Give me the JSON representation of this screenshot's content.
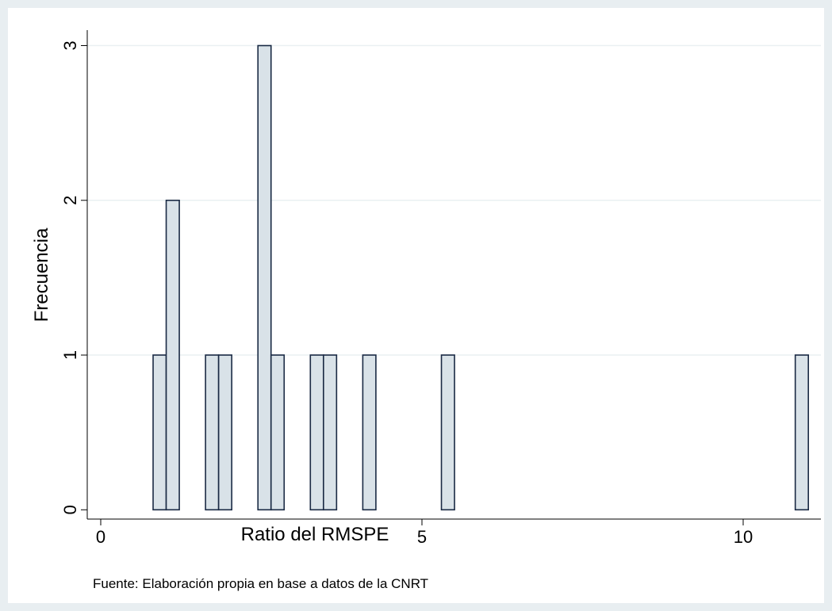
{
  "chart_data": {
    "type": "histogram",
    "x_label": "Ratio del RMSPE",
    "y_label": "Frecuencia",
    "note": "Fuente: Elaboración propia en base a datos de la CNRT",
    "bins": [
      0.815,
      1.019,
      1.223,
      1.427,
      1.631,
      1.835,
      2.039,
      2.243,
      2.447,
      2.651,
      2.855,
      3.059,
      3.263,
      3.467,
      3.671,
      3.875,
      4.079,
      4.283,
      4.487,
      4.691,
      4.895,
      5.099,
      5.303,
      5.507,
      5.711,
      5.915,
      6.119,
      6.323,
      6.527,
      6.731,
      6.935,
      7.139,
      7.343,
      7.547,
      7.751,
      7.955,
      8.159,
      8.363,
      8.567,
      8.771,
      8.975,
      9.179,
      9.383,
      9.587,
      9.791,
      9.995,
      10.199,
      10.403,
      10.607,
      10.811,
      11.015
    ],
    "values": [
      1,
      2,
      0,
      0,
      1,
      1,
      0,
      0,
      3,
      1,
      0,
      0,
      1,
      1,
      0,
      0,
      1,
      0,
      0,
      0,
      0,
      0,
      1,
      0,
      0,
      0,
      0,
      0,
      0,
      0,
      0,
      0,
      0,
      0,
      0,
      0,
      0,
      0,
      0,
      0,
      0,
      0,
      0,
      0,
      0,
      0,
      0,
      0,
      0,
      1
    ],
    "color": "#d9e2e8",
    "edge_color": "#1a2a44",
    "xlim": [
      -0.21,
      11.21
    ],
    "ylim": [
      -0.06,
      3.1
    ],
    "xticks": [
      0,
      5,
      10
    ],
    "yticks": [
      0,
      1,
      2,
      3
    ],
    "grid": true
  }
}
